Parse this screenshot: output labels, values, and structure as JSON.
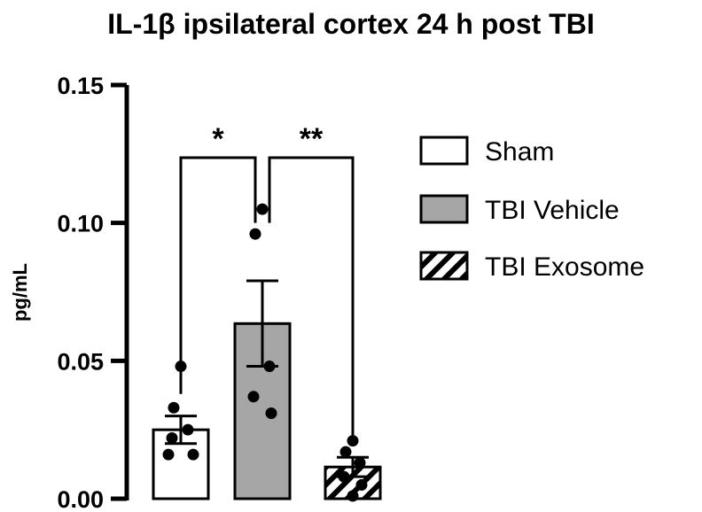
{
  "chart_data": {
    "type": "bar",
    "title": "IL-1β ipsilateral cortex 24 h post TBI",
    "ylabel": "pg/mL",
    "xlabel": "",
    "ylim": [
      0,
      0.15
    ],
    "yticks": [
      "0.00",
      "0.05",
      "0.10",
      "0.15"
    ],
    "grid": false,
    "legend_position": "right",
    "categories": [
      "Sham",
      "TBI Vehicle",
      "TBI Exosome"
    ],
    "values": [
      0.025,
      0.0635,
      0.0115
    ],
    "sem": [
      0.005,
      0.0155,
      0.0035
    ],
    "points": [
      [
        0.048,
        0.033,
        0.025,
        0.022,
        0.016,
        0.016
      ],
      [
        0.105,
        0.096,
        0.048,
        0.037,
        0.031
      ],
      [
        0.021,
        0.017,
        0.013,
        0.008,
        0.005,
        0.001
      ]
    ],
    "fills": [
      "white",
      "gray",
      "hatched"
    ],
    "colors": {
      "sham": "#ffffff",
      "vehicle": "#a6a6a6",
      "exosome": "#ffffff",
      "stroke": "#000000"
    },
    "comparisons": [
      {
        "from": 0,
        "to": 1,
        "label": "*"
      },
      {
        "from": 1,
        "to": 2,
        "label": "**"
      }
    ],
    "legend": [
      "Sham",
      "TBI Vehicle",
      "TBI Exosome"
    ]
  }
}
